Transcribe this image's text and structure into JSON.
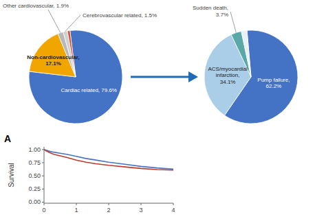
{
  "chart_data": [
    {
      "type": "pie",
      "values": [
        79.6,
        17.1,
        1.9,
        1.5,
        0.9
      ],
      "colors": [
        "#4472C4",
        "#F0A500",
        "#B8B8B8",
        "#D0D0D0",
        "#D94F30"
      ],
      "data_labels": true,
      "value_labels": [
        "Cardiac related, 79.6%",
        "Non-cardiovascular,\n17.1%",
        "Other cardiovascular, 1.9%",
        "Cerebrovascular related, 1.5%",
        null
      ],
      "annotations": [
        "A"
      ]
    },
    {
      "type": "pie",
      "values": [
        62.2,
        34.1,
        3.7,
        2.0
      ],
      "colors": [
        "#4472C4",
        "#AACDE8",
        "#5BA8A8",
        "#E8F0F8"
      ],
      "data_labels": true,
      "value_labels": [
        "Pump failure,\n62.2%",
        "ACS/myocardial\ninfarction,\n34.1%",
        "Sudden death,\n3.7%",
        null
      ]
    },
    {
      "type": "line",
      "x": [
        0,
        0.05,
        0.15,
        0.3,
        0.5,
        0.7,
        1.0,
        1.3,
        1.6,
        2.0,
        2.5,
        3.0,
        3.5,
        4.0
      ],
      "series": [
        {
          "color": "#4472C4",
          "values": [
            1.0,
            0.99,
            0.97,
            0.95,
            0.93,
            0.91,
            0.87,
            0.83,
            0.8,
            0.76,
            0.72,
            0.68,
            0.65,
            0.63
          ]
        },
        {
          "color": "#C0392B",
          "values": [
            1.0,
            0.98,
            0.95,
            0.91,
            0.88,
            0.85,
            0.8,
            0.76,
            0.73,
            0.7,
            0.67,
            0.64,
            0.62,
            0.61
          ]
        }
      ],
      "ylabel": "Survival",
      "xlim": [
        0,
        4
      ],
      "ylim": [
        -0.02,
        1.05
      ],
      "xticks": [
        0,
        1,
        2,
        3,
        4
      ],
      "yticks": [
        {
          "value": 0,
          "label": "0.00"
        },
        0.25,
        {
          "value": 0.5,
          "label": "0.50"
        },
        0.75,
        {
          "value": 1,
          "label": "1.00"
        }
      ],
      "grid": false
    }
  ]
}
